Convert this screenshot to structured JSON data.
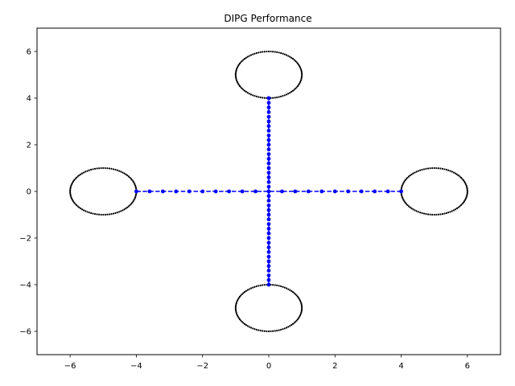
{
  "chart_data": {
    "type": "scatter",
    "title": "DIPG Performance",
    "xlabel": "",
    "ylabel": "",
    "xlim": [
      -7,
      7
    ],
    "ylim": [
      -7,
      7
    ],
    "xticks": [
      -6,
      -4,
      -2,
      0,
      2,
      4,
      6
    ],
    "yticks": [
      -6,
      -4,
      -2,
      0,
      2,
      4,
      6
    ],
    "xtick_labels": [
      "−6",
      "−4",
      "−2",
      "0",
      "2",
      "4",
      "6"
    ],
    "ytick_labels": [
      "−6",
      "−4",
      "−2",
      "0",
      "2",
      "4",
      "6"
    ],
    "grid": false,
    "legend": "none",
    "series": [
      {
        "kind": "circle-points",
        "color": "#000000",
        "circles": [
          {
            "center": [
              0,
              5
            ],
            "radius": 1
          },
          {
            "center": [
              5,
              0
            ],
            "radius": 1
          },
          {
            "center": [
              0,
              -5
            ],
            "radius": 1
          },
          {
            "center": [
              -5,
              0
            ],
            "radius": 1
          }
        ],
        "points_per_circle": 100
      },
      {
        "kind": "dashed-line-points",
        "color": "#0000ff",
        "paths": [
          {
            "x": [
              -4,
              -3.6,
              -3.2,
              -2.8,
              -2.4,
              -2.0,
              -1.6,
              -1.2,
              -0.8,
              -0.4,
              0,
              0.4,
              0.8,
              1.2,
              1.6,
              2.0,
              2.4,
              2.8,
              3.2,
              3.6,
              4.0
            ],
            "y": [
              0,
              0,
              0,
              0,
              0,
              0,
              0,
              0,
              0,
              0,
              0,
              0,
              0,
              0,
              0,
              0,
              0,
              0,
              0,
              0,
              0
            ]
          },
          {
            "x": [
              0,
              0,
              0,
              0,
              0,
              0,
              0,
              0,
              0,
              0,
              0,
              0,
              0,
              0,
              0,
              0,
              0,
              0,
              0,
              0,
              0,
              0,
              0,
              0,
              0,
              0,
              0,
              0,
              0,
              0,
              0,
              0,
              0,
              0,
              0,
              0,
              0,
              0,
              0,
              0,
              0
            ],
            "y": [
              -4.0,
              -3.8,
              -3.6,
              -3.4,
              -3.2,
              -3.0,
              -2.8,
              -2.6,
              -2.4,
              -2.2,
              -2.0,
              -1.8,
              -1.6,
              -1.4,
              -1.2,
              -1.0,
              -0.8,
              -0.6,
              -0.4,
              -0.2,
              0,
              0.2,
              0.4,
              0.6,
              0.8,
              1.0,
              1.2,
              1.4,
              1.6,
              1.8,
              2.0,
              2.2,
              2.4,
              2.6,
              2.8,
              3.0,
              3.2,
              3.4,
              3.6,
              3.8,
              4.0
            ]
          }
        ]
      }
    ]
  }
}
